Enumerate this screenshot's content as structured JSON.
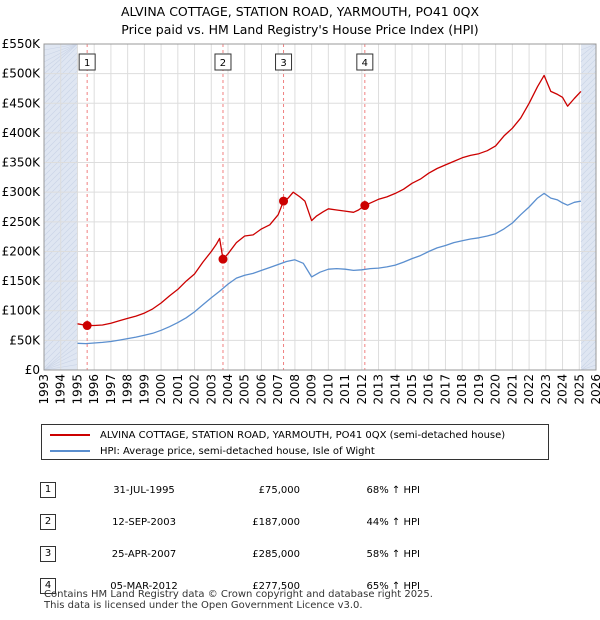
{
  "header": {
    "title_line1": "ALVINA COTTAGE, STATION ROAD, YARMOUTH, PO41 0QX",
    "title_line2": "Price paid vs. HM Land Registry's House Price Index (HPI)"
  },
  "colors": {
    "property": "#cc0000",
    "hpi": "#5b8fcf",
    "shade": "#dfe6f2",
    "marker_line": "#f08080"
  },
  "legend": {
    "property_label": "ALVINA COTTAGE, STATION ROAD, YARMOUTH, PO41 0QX (semi-detached house)",
    "hpi_label": "HPI: Average price, semi-detached house, Isle of Wight"
  },
  "sales": [
    {
      "num": "1",
      "date": "31-JUL-1995",
      "price": "£75,000",
      "hpi": "68% ↑ HPI"
    },
    {
      "num": "2",
      "date": "12-SEP-2003",
      "price": "£187,000",
      "hpi": "44% ↑ HPI"
    },
    {
      "num": "3",
      "date": "25-APR-2007",
      "price": "£285,000",
      "hpi": "58% ↑ HPI"
    },
    {
      "num": "4",
      "date": "05-MAR-2012",
      "price": "£277,500",
      "hpi": "65% ↑ HPI"
    }
  ],
  "footer": {
    "line1": "Contains HM Land Registry data © Crown copyright and database right 2025.",
    "line2": "This data is licensed under the Open Government Licence v3.0."
  },
  "chart_data": {
    "type": "line",
    "title": "ALVINA COTTAGE, STATION ROAD, YARMOUTH, PO41 0QX",
    "subtitle": "Price paid vs. HM Land Registry's House Price Index (HPI)",
    "xlabel": "",
    "ylabel": "",
    "xlim": [
      1993,
      2026
    ],
    "ylim": [
      0,
      550000
    ],
    "grid": true,
    "legend_position": "below",
    "x_ticks": [
      1993,
      1994,
      1995,
      1996,
      1997,
      1998,
      1999,
      2000,
      2001,
      2002,
      2003,
      2004,
      2005,
      2006,
      2007,
      2008,
      2009,
      2010,
      2011,
      2012,
      2013,
      2014,
      2015,
      2016,
      2017,
      2018,
      2019,
      2020,
      2021,
      2022,
      2023,
      2024,
      2025,
      2026
    ],
    "y_ticks": [
      {
        "value": 0,
        "label": "£0"
      },
      {
        "value": 50000,
        "label": "£50K"
      },
      {
        "value": 100000,
        "label": "£100K"
      },
      {
        "value": 150000,
        "label": "£150K"
      },
      {
        "value": 200000,
        "label": "£200K"
      },
      {
        "value": 250000,
        "label": "£250K"
      },
      {
        "value": 300000,
        "label": "£300K"
      },
      {
        "value": 350000,
        "label": "£350K"
      },
      {
        "value": 400000,
        "label": "£400K"
      },
      {
        "value": 450000,
        "label": "£450K"
      },
      {
        "value": 500000,
        "label": "£500K"
      },
      {
        "value": 550000,
        "label": "£550K"
      }
    ],
    "data_range": [
      1995.0,
      2025.1
    ],
    "series": [
      {
        "name": "ALVINA COTTAGE, STATION ROAD, YARMOUTH, PO41 0QX (semi-detached house)",
        "color": "#cc0000",
        "points": [
          [
            1995.0,
            78000
          ],
          [
            1995.58,
            75000
          ],
          [
            1996.0,
            75000
          ],
          [
            1996.5,
            76000
          ],
          [
            1997.0,
            79000
          ],
          [
            1997.5,
            83000
          ],
          [
            1998.0,
            87000
          ],
          [
            1998.5,
            91000
          ],
          [
            1999.0,
            96000
          ],
          [
            1999.5,
            103000
          ],
          [
            2000.0,
            113000
          ],
          [
            2000.5,
            125000
          ],
          [
            2001.0,
            136000
          ],
          [
            2001.5,
            150000
          ],
          [
            2002.0,
            162000
          ],
          [
            2002.5,
            182000
          ],
          [
            2003.0,
            200000
          ],
          [
            2003.3,
            212000
          ],
          [
            2003.5,
            222000
          ],
          [
            2003.7,
            187000
          ],
          [
            2004.0,
            196000
          ],
          [
            2004.5,
            215000
          ],
          [
            2005.0,
            226000
          ],
          [
            2005.5,
            228000
          ],
          [
            2006.0,
            238000
          ],
          [
            2006.5,
            245000
          ],
          [
            2007.0,
            262000
          ],
          [
            2007.32,
            285000
          ],
          [
            2007.6,
            290000
          ],
          [
            2007.9,
            300000
          ],
          [
            2008.3,
            292000
          ],
          [
            2008.6,
            285000
          ],
          [
            2009.0,
            252000
          ],
          [
            2009.3,
            260000
          ],
          [
            2009.7,
            267000
          ],
          [
            2010.0,
            272000
          ],
          [
            2010.5,
            270000
          ],
          [
            2011.0,
            268000
          ],
          [
            2011.5,
            266000
          ],
          [
            2011.8,
            270000
          ],
          [
            2012.18,
            277500
          ],
          [
            2012.6,
            283000
          ],
          [
            2013.0,
            288000
          ],
          [
            2013.5,
            292000
          ],
          [
            2014.0,
            298000
          ],
          [
            2014.5,
            305000
          ],
          [
            2015.0,
            315000
          ],
          [
            2015.5,
            322000
          ],
          [
            2016.0,
            332000
          ],
          [
            2016.5,
            340000
          ],
          [
            2017.0,
            346000
          ],
          [
            2017.5,
            352000
          ],
          [
            2018.0,
            358000
          ],
          [
            2018.5,
            362000
          ],
          [
            2019.0,
            365000
          ],
          [
            2019.5,
            370000
          ],
          [
            2020.0,
            378000
          ],
          [
            2020.5,
            395000
          ],
          [
            2021.0,
            408000
          ],
          [
            2021.5,
            425000
          ],
          [
            2022.0,
            450000
          ],
          [
            2022.5,
            478000
          ],
          [
            2022.9,
            497000
          ],
          [
            2023.3,
            470000
          ],
          [
            2023.7,
            465000
          ],
          [
            2024.0,
            460000
          ],
          [
            2024.3,
            445000
          ],
          [
            2024.7,
            458000
          ],
          [
            2025.1,
            470000
          ]
        ]
      },
      {
        "name": "HPI: Average price, semi-detached house, Isle of Wight",
        "color": "#5b8fcf",
        "points": [
          [
            1995.0,
            45000
          ],
          [
            1995.5,
            44500
          ],
          [
            1996.0,
            45500
          ],
          [
            1996.5,
            46500
          ],
          [
            1997.0,
            48000
          ],
          [
            1997.5,
            50500
          ],
          [
            1998.0,
            53000
          ],
          [
            1998.5,
            55500
          ],
          [
            1999.0,
            58500
          ],
          [
            1999.5,
            62000
          ],
          [
            2000.0,
            67000
          ],
          [
            2000.5,
            73000
          ],
          [
            2001.0,
            80000
          ],
          [
            2001.5,
            88000
          ],
          [
            2002.0,
            98000
          ],
          [
            2002.5,
            110000
          ],
          [
            2003.0,
            122000
          ],
          [
            2003.5,
            133000
          ],
          [
            2004.0,
            145000
          ],
          [
            2004.5,
            155000
          ],
          [
            2005.0,
            160000
          ],
          [
            2005.5,
            163000
          ],
          [
            2006.0,
            168000
          ],
          [
            2006.5,
            173000
          ],
          [
            2007.0,
            178000
          ],
          [
            2007.5,
            183000
          ],
          [
            2008.0,
            186000
          ],
          [
            2008.5,
            180000
          ],
          [
            2009.0,
            157000
          ],
          [
            2009.5,
            165000
          ],
          [
            2010.0,
            170000
          ],
          [
            2010.5,
            171000
          ],
          [
            2011.0,
            170000
          ],
          [
            2011.5,
            168000
          ],
          [
            2012.0,
            169000
          ],
          [
            2012.5,
            171000
          ],
          [
            2013.0,
            172000
          ],
          [
            2013.5,
            174000
          ],
          [
            2014.0,
            177000
          ],
          [
            2014.5,
            182000
          ],
          [
            2015.0,
            188000
          ],
          [
            2015.5,
            193000
          ],
          [
            2016.0,
            200000
          ],
          [
            2016.5,
            206000
          ],
          [
            2017.0,
            210000
          ],
          [
            2017.5,
            215000
          ],
          [
            2018.0,
            218000
          ],
          [
            2018.5,
            221000
          ],
          [
            2019.0,
            223000
          ],
          [
            2019.5,
            226000
          ],
          [
            2020.0,
            230000
          ],
          [
            2020.5,
            238000
          ],
          [
            2021.0,
            248000
          ],
          [
            2021.5,
            262000
          ],
          [
            2022.0,
            275000
          ],
          [
            2022.5,
            290000
          ],
          [
            2022.9,
            298000
          ],
          [
            2023.3,
            290000
          ],
          [
            2023.7,
            287000
          ],
          [
            2024.0,
            282000
          ],
          [
            2024.3,
            278000
          ],
          [
            2024.7,
            283000
          ],
          [
            2025.1,
            285000
          ]
        ]
      }
    ],
    "sale_markers": [
      {
        "label": "1",
        "x": 1995.58,
        "y": 75000
      },
      {
        "label": "2",
        "x": 2003.7,
        "y": 187000
      },
      {
        "label": "3",
        "x": 2007.32,
        "y": 285000
      },
      {
        "label": "4",
        "x": 2012.18,
        "y": 277500
      }
    ]
  }
}
